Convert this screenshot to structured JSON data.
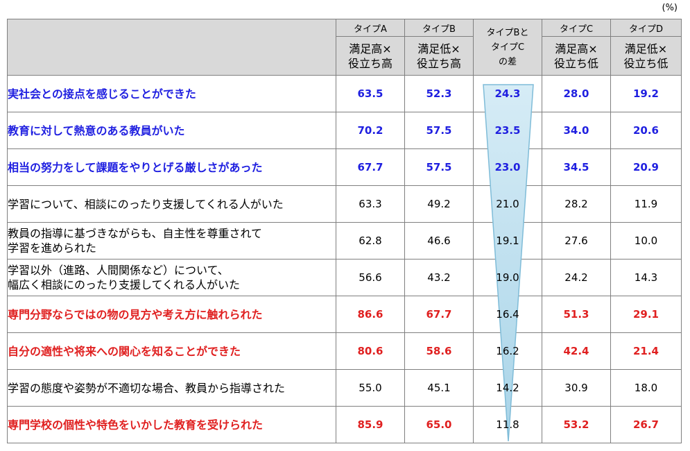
{
  "unit_label": "(%)",
  "headers": {
    "a_top": "タイプA",
    "a_line1": "満足高×",
    "a_line2": "役立ち高",
    "b_top": "タイプB",
    "b_line1": "満足低×",
    "b_line2": "役立ち高",
    "diff_line1": "タイプBと",
    "diff_line2": "タイプC",
    "diff_line3": "の差",
    "c_top": "タイプC",
    "c_line1": "満足高×",
    "c_line2": "役立ち低",
    "d_top": "タイプD",
    "d_line1": "満足低×",
    "d_line2": "役立ち低"
  },
  "colors": {
    "blue": "#1f1fe0",
    "red": "#e02020",
    "header_bg": "#d9d9d9",
    "wedge": "#a9d4e8"
  },
  "chart_data": {
    "type": "table",
    "columns": [
      "タイプA 満足高×役立ち高",
      "タイプB 満足低×役立ち高",
      "タイプBとタイプCの差",
      "タイプC 満足高×役立ち低",
      "タイプD 満足低×役立ち低"
    ],
    "unit": "(%)",
    "rows": [
      {
        "label1": "実社会との接点を感じることができた",
        "label2": "",
        "style": "blue",
        "a": "63.5",
        "b": "52.3",
        "diff": "24.3",
        "c": "28.0",
        "d": "19.2"
      },
      {
        "label1": "教育に対して熱意のある教員がいた",
        "label2": "",
        "style": "blue",
        "a": "70.2",
        "b": "57.5",
        "diff": "23.5",
        "c": "34.0",
        "d": "20.6"
      },
      {
        "label1": "相当の努力をして課題をやりとげる厳しさがあった",
        "label2": "",
        "style": "blue",
        "a": "67.7",
        "b": "57.5",
        "diff": "23.0",
        "c": "34.5",
        "d": "20.9"
      },
      {
        "label1": "学習について、相談にのったり支援してくれる人がいた",
        "label2": "",
        "style": "plain",
        "a": "63.3",
        "b": "49.2",
        "diff": "21.0",
        "c": "28.2",
        "d": "11.9"
      },
      {
        "label1": "教員の指導に基づきながらも、自主性を尊重されて",
        "label2": "学習を進められた",
        "style": "plain",
        "a": "62.8",
        "b": "46.6",
        "diff": "19.1",
        "c": "27.6",
        "d": "10.0"
      },
      {
        "label1": "学習以外（進路、人間関係など）について、",
        "label2": "幅広く相談にのったり支援してくれる人がいた",
        "style": "plain",
        "a": "56.6",
        "b": "43.2",
        "diff": "19.0",
        "c": "24.2",
        "d": "14.3"
      },
      {
        "label1": "専門分野ならではの物の見方や考え方に触れられた",
        "label2": "",
        "style": "red",
        "a": "86.6",
        "b": "67.7",
        "diff": "16.4",
        "c": "51.3",
        "d": "29.1"
      },
      {
        "label1": "自分の適性や将来への関心を知ることができた",
        "label2": "",
        "style": "red",
        "a": "80.6",
        "b": "58.6",
        "diff": "16.2",
        "c": "42.4",
        "d": "21.4"
      },
      {
        "label1": "学習の態度や姿勢が不適切な場合、教員から指導された",
        "label2": "",
        "style": "plain",
        "a": "55.0",
        "b": "45.1",
        "diff": "14.2",
        "c": "30.9",
        "d": "18.0"
      },
      {
        "label1": "専門学校の個性や特色をいかした教育を受けられた",
        "label2": "",
        "style": "red",
        "a": "85.9",
        "b": "65.0",
        "diff": "11.8",
        "c": "53.2",
        "d": "26.7"
      }
    ]
  }
}
